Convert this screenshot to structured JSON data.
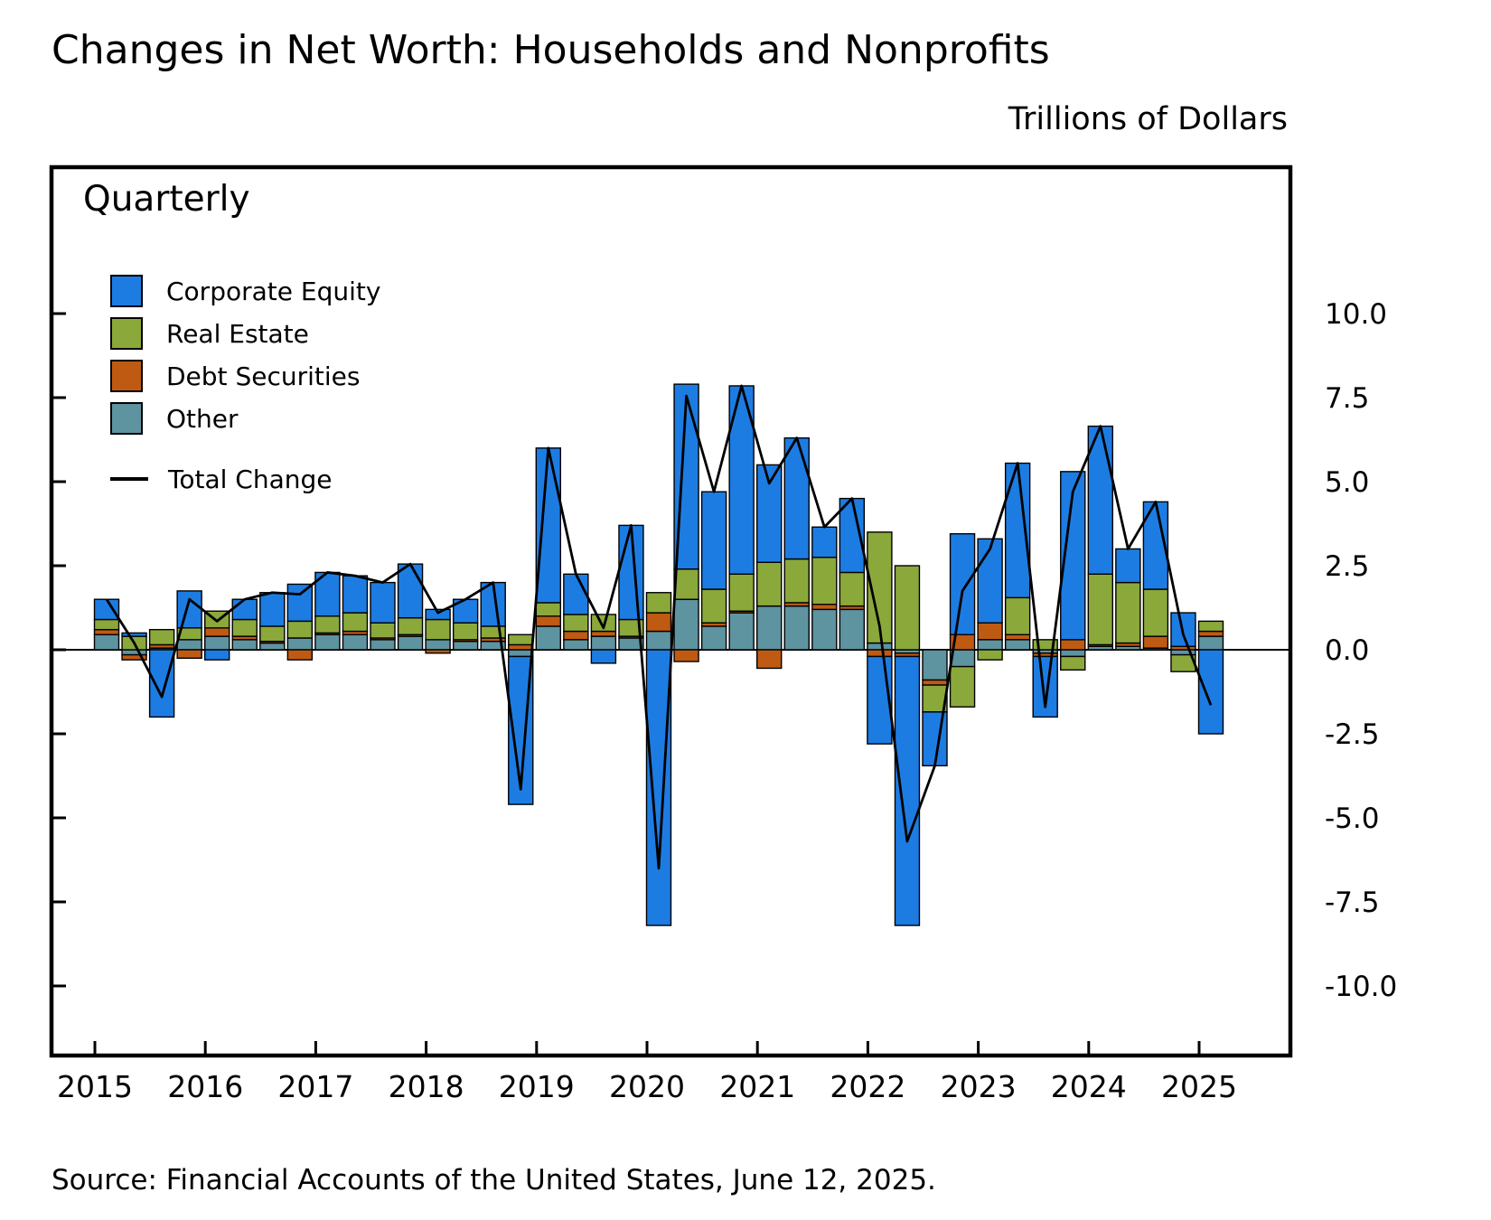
{
  "header": {
    "title": "Changes in Net Worth: Households and Nonprofits",
    "units_label": "Trillions of Dollars"
  },
  "plot": {
    "frequency_label": "Quarterly"
  },
  "footer": {
    "source": "Source: Financial Accounts of the United States, June 12, 2025."
  },
  "chart_data": {
    "type": "bar",
    "stacked": true,
    "title": "Changes in Net Worth: Households and Nonprofits",
    "ylabel": "Trillions of Dollars",
    "frequency": "Quarterly",
    "ylim": [
      -10,
      10
    ],
    "y_ticks": [
      10.0,
      7.5,
      5.0,
      2.5,
      0.0,
      -2.5,
      -5.0,
      -7.5,
      -10.0
    ],
    "x_year_labels": [
      "2015",
      "2016",
      "2017",
      "2018",
      "2019",
      "2020",
      "2021",
      "2022",
      "2023",
      "2024",
      "2025"
    ],
    "x": [
      "2015Q1",
      "2015Q2",
      "2015Q3",
      "2015Q4",
      "2016Q1",
      "2016Q2",
      "2016Q3",
      "2016Q4",
      "2017Q1",
      "2017Q2",
      "2017Q3",
      "2017Q4",
      "2018Q1",
      "2018Q2",
      "2018Q3",
      "2018Q4",
      "2019Q1",
      "2019Q2",
      "2019Q3",
      "2019Q4",
      "2020Q1",
      "2020Q2",
      "2020Q3",
      "2020Q4",
      "2021Q1",
      "2021Q2",
      "2021Q3",
      "2021Q4",
      "2022Q1",
      "2022Q2",
      "2022Q3",
      "2022Q4",
      "2023Q1",
      "2023Q2",
      "2023Q3",
      "2023Q4",
      "2024Q1",
      "2024Q2",
      "2024Q3",
      "2024Q4",
      "2025Q1"
    ],
    "stack_order": [
      "Other",
      "Debt Securities",
      "Real Estate",
      "Corporate Equity"
    ],
    "series": [
      {
        "name": "Corporate Equity",
        "color": "#1d7ce2",
        "values": [
          0.6,
          0.1,
          -2.0,
          1.1,
          -0.3,
          0.6,
          1.0,
          1.1,
          1.3,
          1.1,
          1.2,
          1.6,
          0.3,
          0.7,
          1.3,
          -4.4,
          4.6,
          1.2,
          -0.4,
          2.8,
          -8.2,
          5.5,
          2.9,
          5.6,
          2.9,
          3.6,
          0.9,
          2.2,
          -2.6,
          -8.0,
          -1.6,
          3.0,
          2.5,
          4.0,
          -1.8,
          5.0,
          4.4,
          1.0,
          2.6,
          1.0,
          -2.5
        ]
      },
      {
        "name": "Real Estate",
        "color": "#8ba83b",
        "values": [
          0.3,
          0.4,
          0.45,
          0.35,
          0.5,
          0.5,
          0.45,
          0.5,
          0.5,
          0.55,
          0.45,
          0.5,
          0.6,
          0.5,
          0.35,
          0.3,
          0.4,
          0.5,
          0.5,
          0.5,
          0.6,
          0.9,
          1.0,
          1.1,
          1.3,
          1.3,
          1.4,
          1.0,
          3.3,
          2.5,
          -0.8,
          -1.2,
          -0.3,
          1.1,
          0.3,
          -0.4,
          2.1,
          1.8,
          1.4,
          -0.5,
          0.3
        ]
      },
      {
        "name": "Debt Securities",
        "color": "#bf5a13",
        "values": [
          0.15,
          -0.15,
          0.1,
          -0.25,
          0.25,
          0.1,
          0.05,
          -0.3,
          0.05,
          0.1,
          0.05,
          0.05,
          -0.1,
          0.05,
          0.1,
          0.15,
          0.3,
          0.25,
          0.15,
          0.05,
          0.55,
          -0.35,
          0.1,
          0.05,
          -0.55,
          0.1,
          0.15,
          0.1,
          -0.2,
          -0.1,
          -0.15,
          0.45,
          0.5,
          0.15,
          -0.1,
          0.3,
          0.05,
          0.1,
          0.35,
          0.1,
          0.15
        ]
      },
      {
        "name": "Other",
        "color": "#5e93a0",
        "values": [
          0.45,
          -0.15,
          0.05,
          0.3,
          0.4,
          0.3,
          0.2,
          0.35,
          0.45,
          0.45,
          0.3,
          0.4,
          0.3,
          0.25,
          0.25,
          -0.2,
          0.7,
          0.3,
          0.4,
          0.35,
          0.55,
          1.5,
          0.7,
          1.1,
          1.3,
          1.3,
          1.2,
          1.2,
          0.2,
          -0.1,
          -0.9,
          -0.5,
          0.3,
          0.3,
          -0.1,
          -0.2,
          0.1,
          0.1,
          0.05,
          -0.15,
          0.4
        ]
      }
    ],
    "total_series": {
      "name": "Total Change",
      "color": "#000000",
      "values": [
        1.5,
        0.2,
        -1.4,
        1.5,
        0.85,
        1.5,
        1.7,
        1.65,
        2.3,
        2.2,
        2.0,
        2.55,
        1.1,
        1.5,
        2.0,
        -4.15,
        6.0,
        2.25,
        0.65,
        3.7,
        -6.5,
        7.55,
        4.7,
        7.85,
        4.95,
        6.3,
        3.65,
        4.5,
        0.7,
        -5.7,
        -3.45,
        1.75,
        3.0,
        5.55,
        -1.7,
        4.7,
        6.65,
        3.0,
        4.4,
        0.45,
        -1.65
      ]
    },
    "legend_position": "upper-left-inside",
    "grid": false
  }
}
